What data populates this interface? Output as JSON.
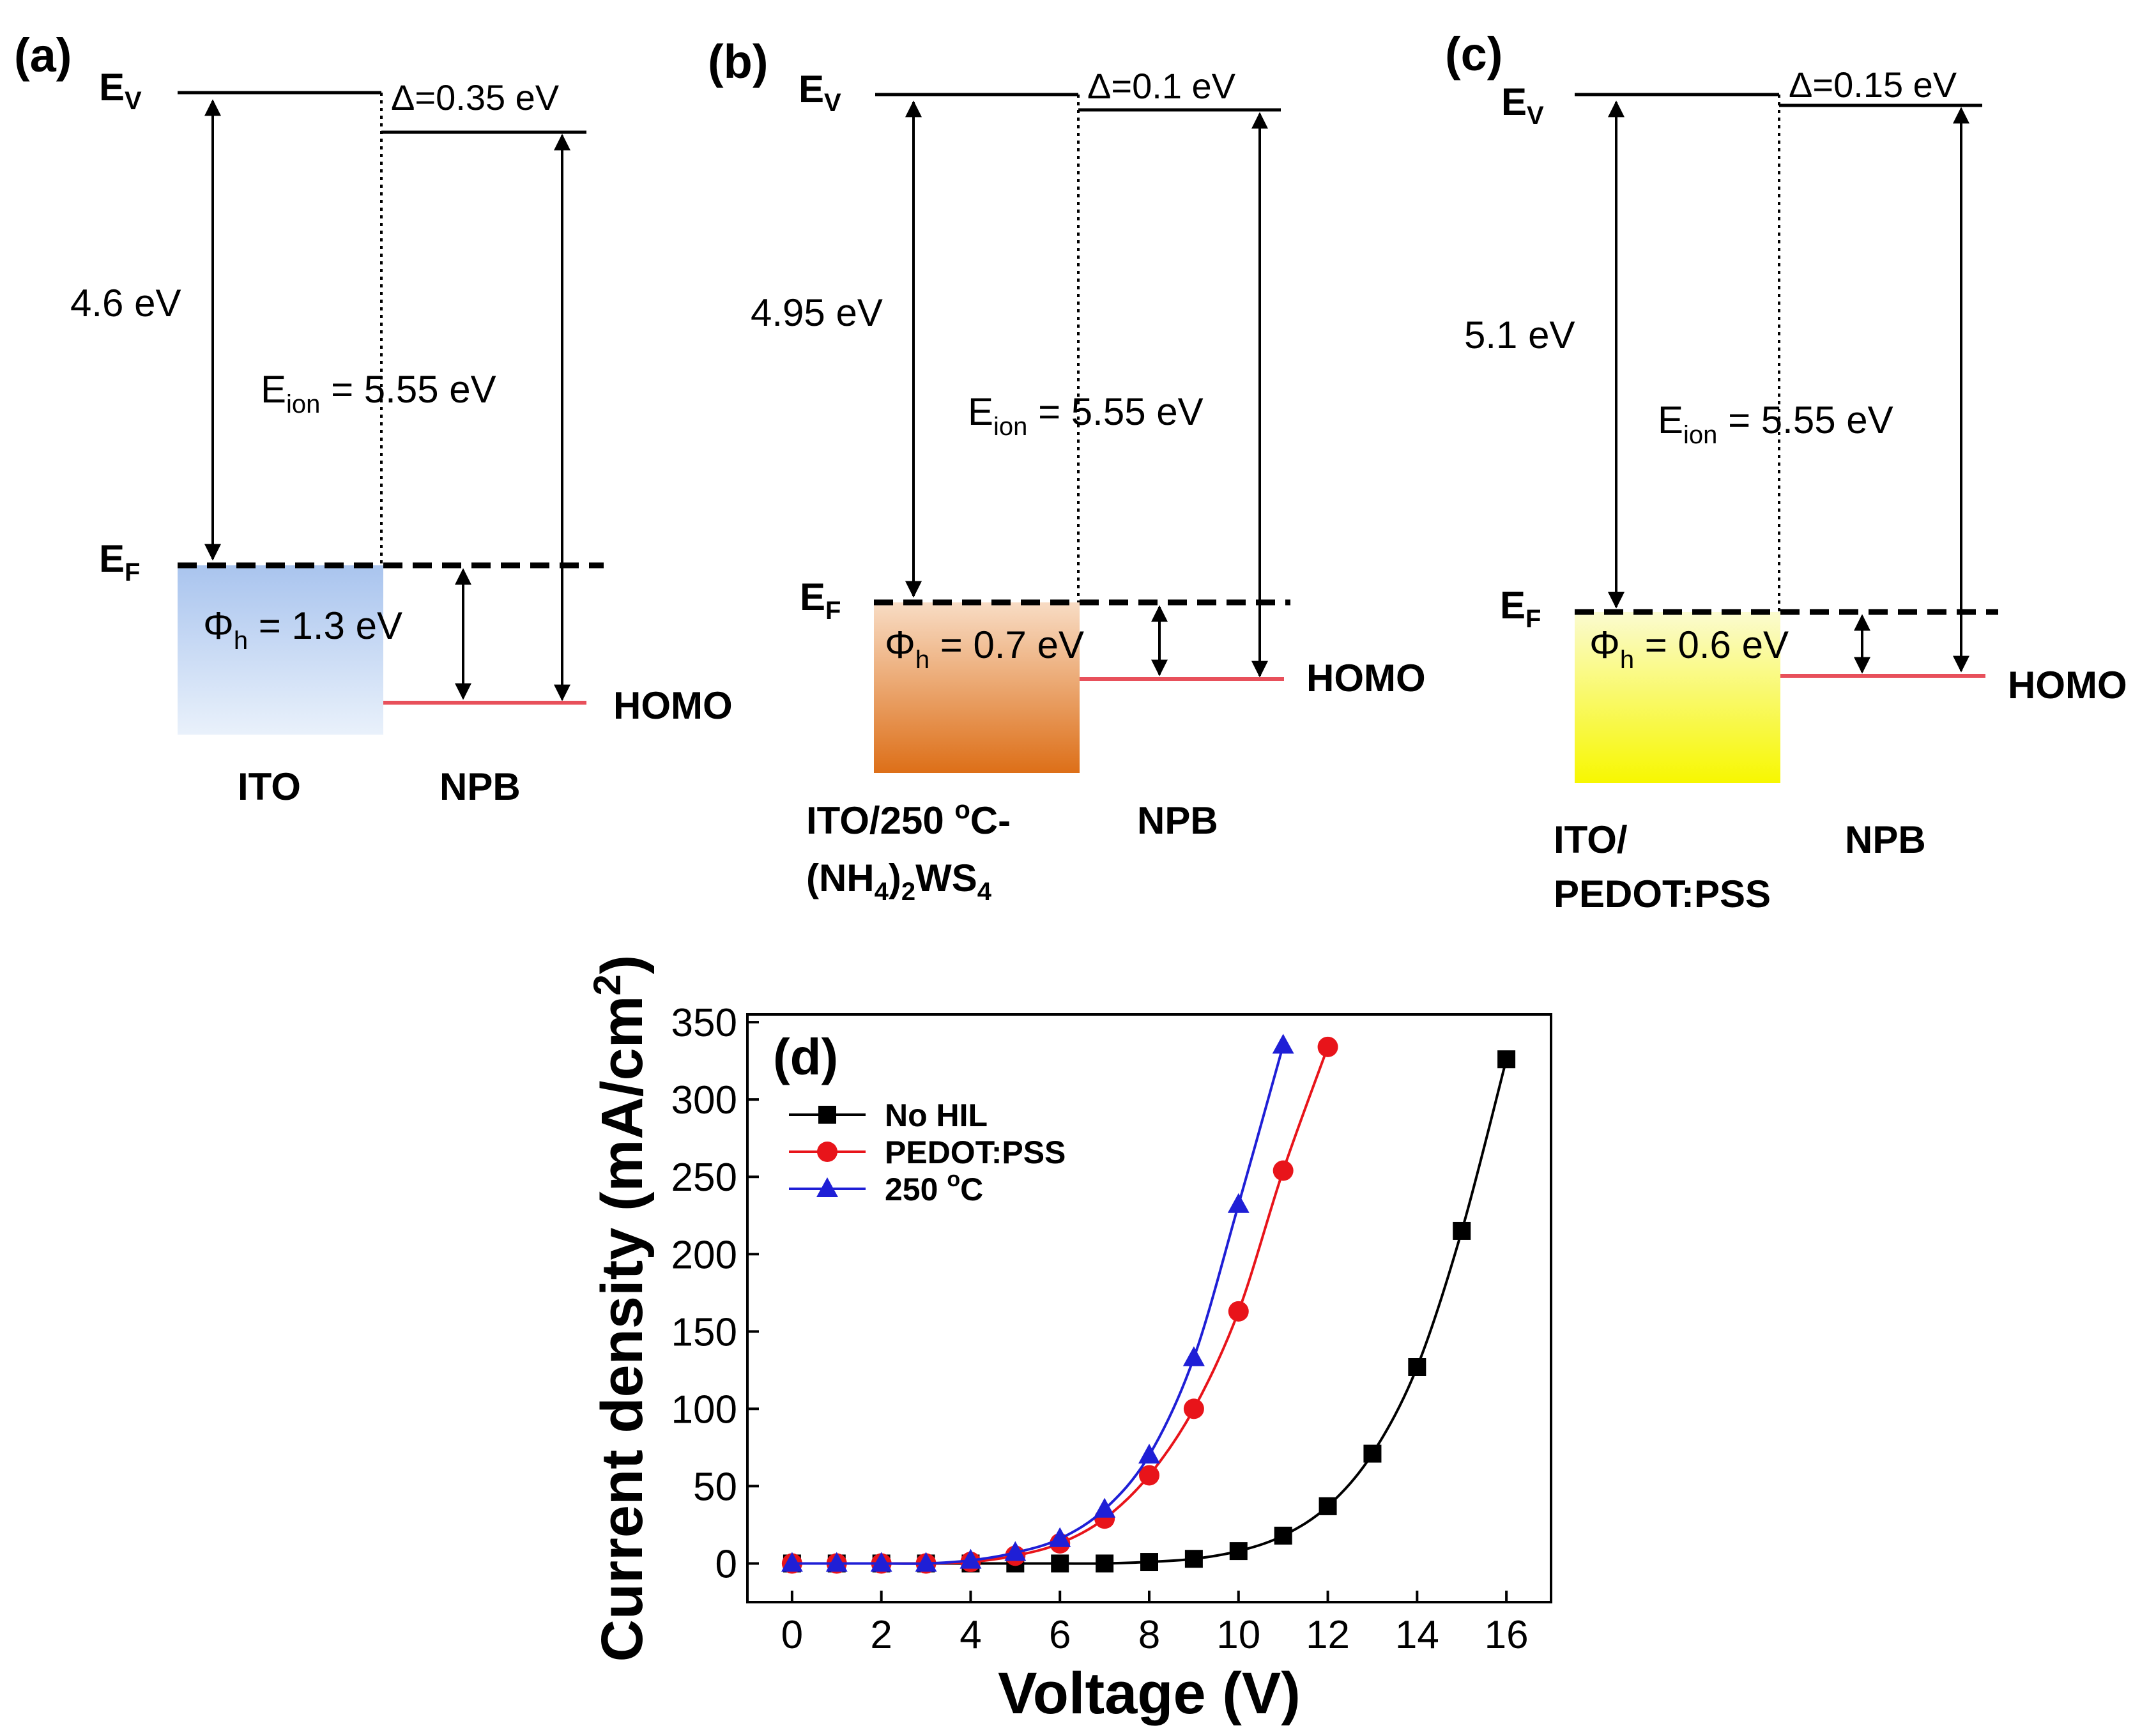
{
  "panels": [
    {
      "id": "a",
      "label": "(a)",
      "ev": "E",
      "ev_sub": "V",
      "ef": "E",
      "ef_sub": "F",
      "delta": "Δ=0.35 eV",
      "work_function": "4.6 eV",
      "eion": "E",
      "eion_sub": "ion",
      "eion_value": " = 5.55 eV",
      "phi": "Φ",
      "phi_sub": "h",
      "phi_value": " = 1.3 eV",
      "homo": "HOMO",
      "electrode_label": "ITO",
      "organic_label": "NPB",
      "fill_top": "#a9c4ee",
      "fill_bottom": "#e9f1fb"
    },
    {
      "id": "b",
      "label": "(b)",
      "ev": "E",
      "ev_sub": "V",
      "ef": "E",
      "ef_sub": "F",
      "delta": "Δ=0.1 eV",
      "work_function": "4.95 eV",
      "eion": "E",
      "eion_sub": "ion",
      "eion_value": " = 5.55 eV",
      "phi": "Φ",
      "phi_sub": "h",
      "phi_value": " = 0.7 eV",
      "homo": "HOMO",
      "electrode_label_line1": "ITO/250 ",
      "electrode_label_sup": "o",
      "electrode_label_line1_end": "C-",
      "electrode_label_line2_a": "(NH",
      "electrode_label_line2_sub1": "4",
      "electrode_label_line2_b": ")",
      "electrode_label_line2_sub2": "2",
      "electrode_label_line2_c": "WS",
      "electrode_label_line2_sub3": "4",
      "organic_label": "NPB",
      "fill_top": "#f8dcc4",
      "fill_bottom": "#dd6f18"
    },
    {
      "id": "c",
      "label": "(c)",
      "ev": "E",
      "ev_sub": "V",
      "ef": "E",
      "ef_sub": "F",
      "delta": "Δ=0.15 eV",
      "work_function": "5.1 eV",
      "eion": "E",
      "eion_sub": "ion",
      "eion_value": " = 5.55 eV",
      "phi": "Φ",
      "phi_sub": "h",
      "phi_value": " = 0.6 eV",
      "homo": "HOMO",
      "electrode_label_line1": "ITO/",
      "electrode_label_line2": "PEDOT:PSS",
      "organic_label": "NPB",
      "fill_top": "#fbfbd0",
      "fill_bottom": "#f7f700"
    }
  ],
  "homo_color": "#e8505b",
  "chart_data": {
    "type": "line",
    "panel_label": "(d)",
    "xlabel": "Voltage (V)",
    "ylabel": "Current density (mA/cm",
    "ylabel_sup": "2",
    "ylabel_end": ")",
    "xlim": [
      -1,
      17
    ],
    "ylim": [
      -25,
      355
    ],
    "xticks": [
      0,
      2,
      4,
      6,
      8,
      10,
      12,
      14,
      16
    ],
    "yticks": [
      0,
      50,
      100,
      150,
      200,
      250,
      300,
      350
    ],
    "legend_position": "top-left",
    "series": [
      {
        "name": "No HIL",
        "color": "#000000",
        "marker": "square",
        "x": [
          0,
          1,
          2,
          3,
          4,
          5,
          6,
          7,
          8,
          9,
          10,
          11,
          12,
          13,
          14,
          15,
          16
        ],
        "values": [
          0,
          0,
          0,
          0,
          0,
          0,
          0,
          0,
          1,
          3,
          8,
          18,
          37,
          71,
          127,
          215,
          326
        ]
      },
      {
        "name": "PEDOT:PSS",
        "color": "#e8141a",
        "marker": "circle",
        "x": [
          0,
          1,
          2,
          3,
          4,
          5,
          6,
          7,
          8,
          9,
          10,
          11,
          12
        ],
        "values": [
          0,
          0,
          0,
          0,
          1,
          5,
          13,
          29,
          57,
          100,
          163,
          254,
          334
        ]
      },
      {
        "name": "250 oC",
        "name_main": "250 ",
        "name_sup": "o",
        "name_end": "C",
        "color": "#1f1fd6",
        "marker": "triangle",
        "x": [
          0,
          1,
          2,
          3,
          4,
          5,
          6,
          7,
          8,
          9,
          10,
          11
        ],
        "values": [
          0,
          0,
          0,
          0,
          2,
          7,
          16,
          35,
          70,
          133,
          232,
          335
        ]
      }
    ]
  }
}
